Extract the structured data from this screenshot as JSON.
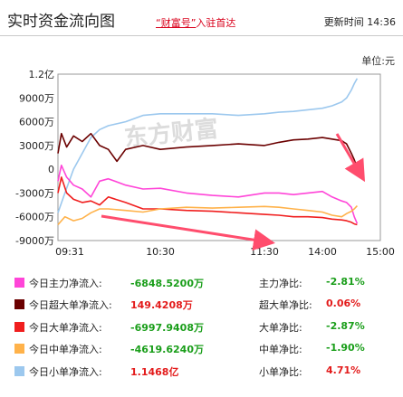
{
  "header": {
    "title": "实时资金流向图",
    "promo_q": "“财富号”",
    "promo_rest": "入驻首达",
    "updated_label": "更新时间",
    "updated_time": "14:36"
  },
  "unit_label": "单位:元",
  "watermark": "东方财富",
  "colors": {
    "main": "#ff45d8",
    "super": "#6b0000",
    "big": "#f01e1e",
    "mid": "#ffb24a",
    "small": "#9cc8ee",
    "arrow": "#ff4d6d",
    "axis": "#999999",
    "watermark": "#dcdcdc"
  },
  "chart_data": {
    "type": "line",
    "xlabel": "",
    "ylabel": "",
    "x_ticks": [
      "09:31",
      "10:30",
      "11:30",
      "14:00",
      "15:00"
    ],
    "y_ticks": [
      "1.2亿",
      "9000万",
      "6000万",
      "3000万",
      "0",
      "-3000万",
      "-6000万",
      "-9000万"
    ],
    "y_tick_values": [
      12000,
      9000,
      6000,
      3000,
      0,
      -3000,
      -6000,
      -9000
    ],
    "ylim": [
      -9000,
      12000
    ],
    "x_domain": [
      "09:31",
      "15:00"
    ],
    "grid": false,
    "value_unit": "万",
    "series": [
      {
        "key": "small",
        "x": [
          "09:31",
          "09:35",
          "09:40",
          "09:45",
          "09:50",
          "09:55",
          "10:00",
          "10:10",
          "10:20",
          "10:30",
          "10:45",
          "11:00",
          "11:15",
          "11:30",
          "13:15",
          "13:30",
          "13:45",
          "14:00",
          "14:10",
          "14:20",
          "14:25",
          "14:30",
          "14:33",
          "14:36"
        ],
        "values": [
          -5500,
          -3000,
          0,
          2000,
          4000,
          5000,
          5500,
          6000,
          6800,
          7000,
          7000,
          7000,
          6800,
          7000,
          7200,
          7300,
          7500,
          7700,
          8000,
          8500,
          9000,
          10000,
          10800,
          11468
        ]
      },
      {
        "key": "super",
        "x": [
          "09:31",
          "09:33",
          "09:36",
          "09:40",
          "09:45",
          "09:50",
          "09:55",
          "10:00",
          "10:05",
          "10:10",
          "10:20",
          "10:30",
          "10:45",
          "11:00",
          "11:15",
          "11:30",
          "13:15",
          "13:30",
          "13:45",
          "14:00",
          "14:10",
          "14:20",
          "14:25",
          "14:30",
          "14:33",
          "14:36"
        ],
        "values": [
          2000,
          4500,
          2800,
          4200,
          3500,
          4500,
          3000,
          2500,
          1000,
          2500,
          3000,
          2500,
          2800,
          3000,
          3200,
          3000,
          3400,
          3700,
          3800,
          4000,
          3800,
          3600,
          3200,
          2000,
          1200,
          149
        ]
      },
      {
        "key": "main",
        "x": [
          "09:31",
          "09:33",
          "09:36",
          "09:40",
          "09:45",
          "09:50",
          "09:55",
          "10:00",
          "10:10",
          "10:20",
          "10:30",
          "10:45",
          "11:00",
          "11:15",
          "11:30",
          "13:15",
          "13:30",
          "13:45",
          "14:00",
          "14:10",
          "14:20",
          "14:25",
          "14:30",
          "14:33",
          "14:36"
        ],
        "values": [
          -1500,
          500,
          -1000,
          -2000,
          -2500,
          -3500,
          -1500,
          -1200,
          -2000,
          -2500,
          -2400,
          -3000,
          -3300,
          -3500,
          -3000,
          -3000,
          -3200,
          -3000,
          -2800,
          -3500,
          -4000,
          -4200,
          -4800,
          -6000,
          -6849
        ]
      },
      {
        "key": "big",
        "x": [
          "09:31",
          "09:33",
          "09:36",
          "09:40",
          "09:45",
          "09:50",
          "09:55",
          "10:00",
          "10:10",
          "10:20",
          "10:30",
          "10:45",
          "11:00",
          "11:15",
          "11:30",
          "13:15",
          "13:30",
          "13:45",
          "14:00",
          "14:10",
          "14:20",
          "14:25",
          "14:30",
          "14:33",
          "14:36"
        ],
        "values": [
          -3000,
          -1000,
          -3000,
          -3800,
          -4200,
          -4000,
          -4500,
          -3500,
          -4200,
          -5000,
          -5000,
          -5200,
          -5300,
          -5500,
          -5700,
          -5800,
          -6000,
          -6000,
          -6100,
          -6300,
          -6400,
          -6500,
          -6700,
          -6900,
          -6998
        ]
      },
      {
        "key": "mid",
        "x": [
          "09:31",
          "09:35",
          "09:40",
          "09:45",
          "09:50",
          "09:55",
          "10:00",
          "10:10",
          "10:20",
          "10:30",
          "10:45",
          "11:00",
          "11:15",
          "11:30",
          "13:15",
          "13:30",
          "13:45",
          "14:00",
          "14:10",
          "14:20",
          "14:25",
          "14:30",
          "14:33",
          "14:36"
        ],
        "values": [
          -7000,
          -6000,
          -6500,
          -6200,
          -5500,
          -5000,
          -5000,
          -5200,
          -5400,
          -5000,
          -4800,
          -4900,
          -4800,
          -4700,
          -4800,
          -5000,
          -5200,
          -5400,
          -5800,
          -6000,
          -5600,
          -5300,
          -5000,
          -4620
        ]
      }
    ]
  },
  "legend": [
    {
      "key": "main",
      "label": "今日主力净流入:",
      "value": "-6848.5200万",
      "value_tone": "green",
      "ratio_label": "主力净比:",
      "ratio": "-2.81%",
      "ratio_tone": "green"
    },
    {
      "key": "super",
      "label": "今日超大单净流入:",
      "value": "149.4208万",
      "value_tone": "red",
      "ratio_label": "超大单净比:",
      "ratio": "0.06%",
      "ratio_tone": "red"
    },
    {
      "key": "big",
      "label": "今日大单净流入:",
      "value": "-6997.9408万",
      "value_tone": "green",
      "ratio_label": "大单净比:",
      "ratio": "-2.87%",
      "ratio_tone": "green"
    },
    {
      "key": "mid",
      "label": "今日中单净流入:",
      "value": "-4619.6240万",
      "value_tone": "green",
      "ratio_label": "中单净比:",
      "ratio": "-1.90%",
      "ratio_tone": "green"
    },
    {
      "key": "small",
      "label": "今日小单净流入:",
      "value": "1.1468亿",
      "value_tone": "red",
      "ratio_label": "小单净比:",
      "ratio": "4.71%",
      "ratio_tone": "red"
    }
  ]
}
